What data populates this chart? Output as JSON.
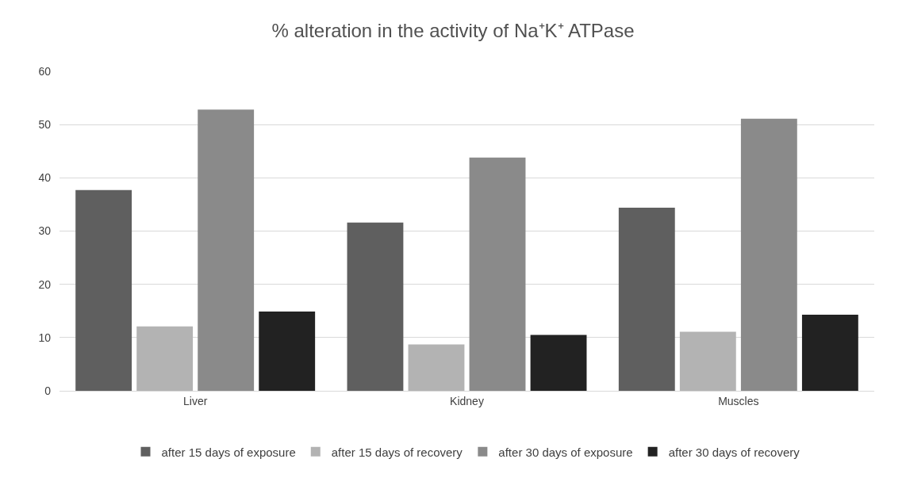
{
  "chart_data": {
    "type": "bar",
    "title": "% alteration in the activity of Na⁺K⁺ ATPase",
    "categories": [
      "Liver",
      "Kidney",
      "Muscles"
    ],
    "series": [
      {
        "name": "after 15 days of exposure",
        "color": "#5f5f5f",
        "values": [
          37.7,
          31.6,
          34.4
        ]
      },
      {
        "name": "after 15 days of recovery",
        "color": "#b3b3b3",
        "values": [
          12.1,
          8.7,
          11.1
        ]
      },
      {
        "name": "after 30 days of exposure",
        "color": "#8a8a8a",
        "values": [
          52.8,
          43.8,
          51.1
        ]
      },
      {
        "name": "after 30 days of recovery",
        "color": "#222222",
        "values": [
          14.9,
          10.5,
          14.3
        ]
      }
    ],
    "ylim": [
      0,
      60
    ],
    "yticks": [
      0,
      10,
      20,
      30,
      40,
      50,
      60
    ],
    "grid": "y",
    "legend": "bottom"
  }
}
